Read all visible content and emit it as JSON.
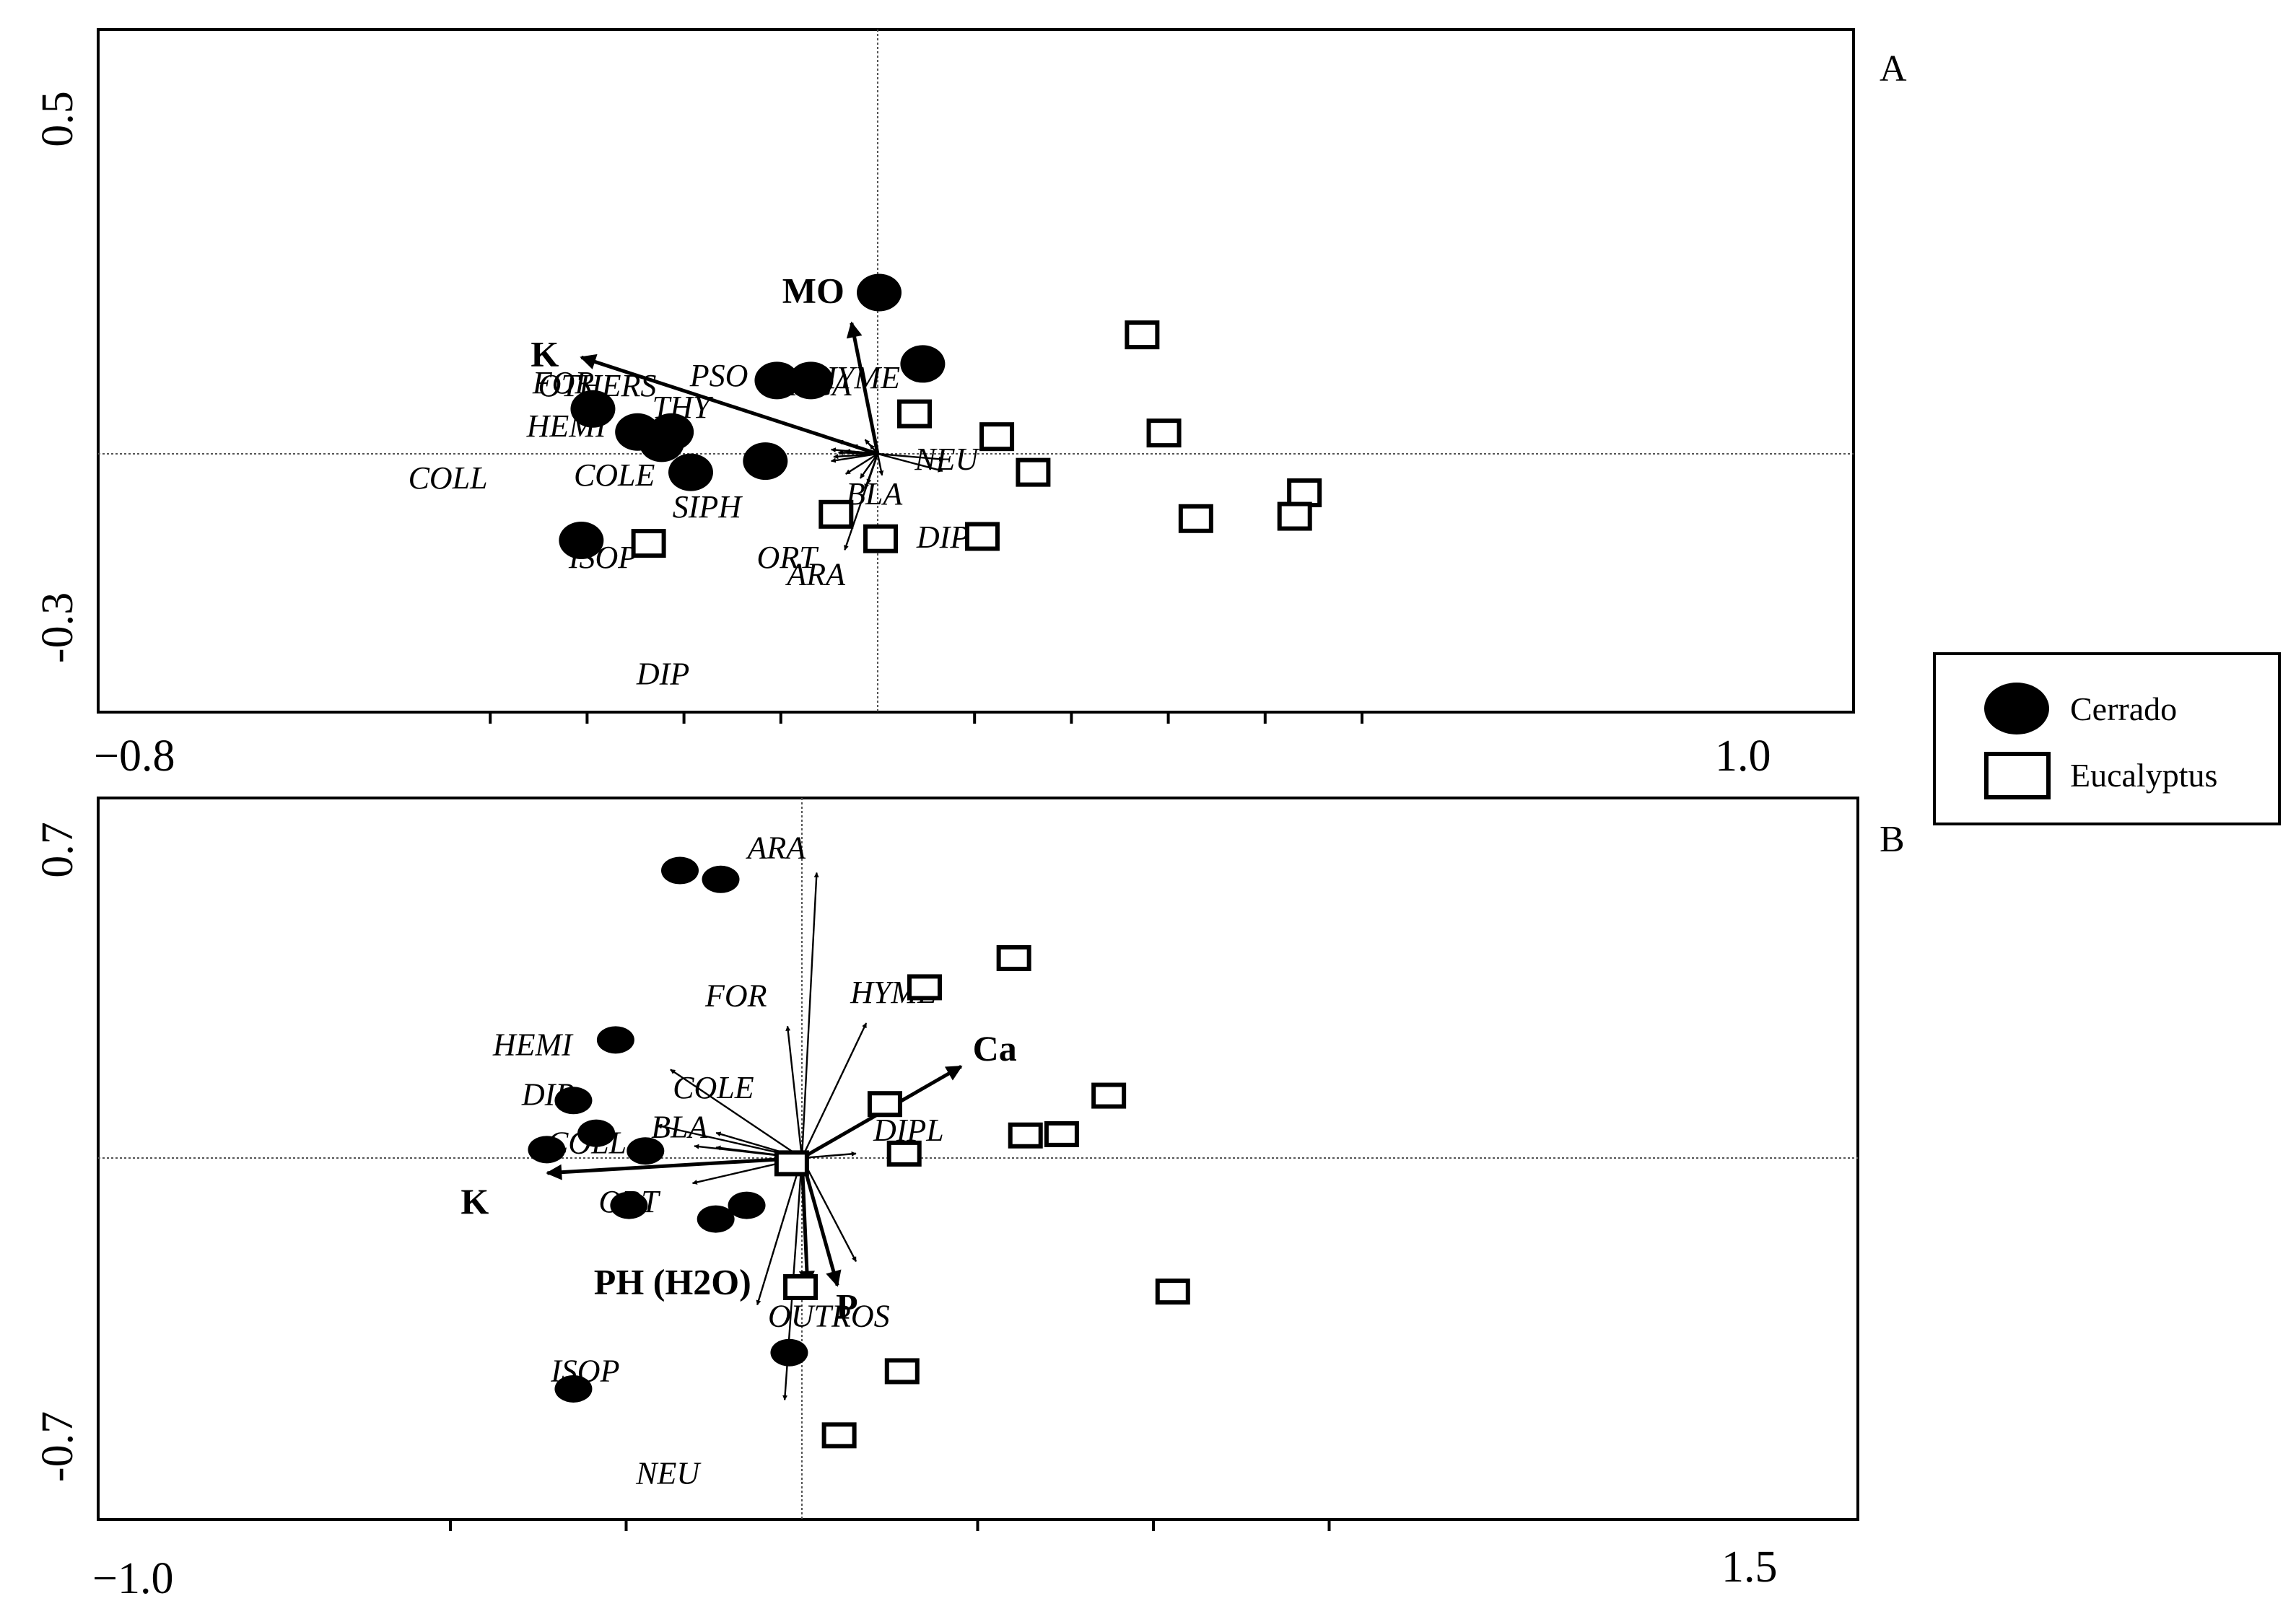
{
  "legend": {
    "items": [
      {
        "label": "Cerrado",
        "marker": "filled-circle",
        "color": "#000000"
      },
      {
        "label": "Eucalyptus",
        "marker": "open-square",
        "color": "#000000"
      }
    ]
  },
  "chart_data": [
    {
      "type": "scatter",
      "panel_label": "A",
      "title": "",
      "xlabel": "",
      "ylabel": "",
      "xlim": [
        -0.8,
        1.0
      ],
      "ylim": [
        -0.3,
        0.5
      ],
      "x_tick_labels": [
        {
          "value": -0.8,
          "label": "−0.8"
        },
        {
          "value": 1.0,
          "label": "1.0"
        }
      ],
      "y_tick_labels": [
        {
          "value": 0.5,
          "label": "0.5"
        },
        {
          "value": -0.3,
          "label": "-0.3"
        }
      ],
      "x_minor_ticks": [
        -0.6,
        -0.4,
        -0.2,
        0.2,
        0.4,
        0.6,
        0.8
      ],
      "grid": false,
      "zero_lines": true,
      "series": [
        {
          "name": "Cerrado",
          "marker": "filled-circle",
          "points": [
            [
              0.003,
              0.488
            ],
            [
              0.093,
              0.272
            ],
            [
              -0.208,
              0.222
            ],
            [
              -0.138,
              0.222
            ],
            [
              -0.588,
              0.136
            ],
            [
              -0.496,
              0.066
            ],
            [
              -0.426,
              0.066
            ],
            [
              -0.446,
              0.032
            ],
            [
              -0.232,
              -0.022
            ],
            [
              -0.386,
              -0.056
            ],
            [
              -0.612,
              -0.262
            ]
          ]
        },
        {
          "name": "Eucalyptus",
          "marker": "open-square",
          "points": [
            [
              0.546,
              0.36
            ],
            [
              0.076,
              0.121
            ],
            [
              0.246,
              0.052
            ],
            [
              0.591,
              0.063
            ],
            [
              0.321,
              -0.056
            ],
            [
              0.881,
              -0.118
            ],
            [
              0.657,
              -0.196
            ],
            [
              0.861,
              -0.189
            ],
            [
              -0.086,
              -0.183
            ],
            [
              0.216,
              -0.25
            ],
            [
              0.006,
              -0.257
            ],
            [
              -0.473,
              -0.271
            ]
          ]
        }
      ],
      "environmental_vectors": [
        {
          "label": "MO",
          "x": -0.054,
          "y": 0.396
        },
        {
          "label": "K",
          "x": -0.612,
          "y": 0.292
        }
      ],
      "species_vectors": [
        {
          "label": "OTHERS",
          "x": -0.081,
          "y": 0.039
        },
        {
          "label": "ACA",
          "x": -0.026,
          "y": 0.043
        },
        {
          "label": "PSO",
          "x": -0.051,
          "y": 0.026
        },
        {
          "label": "HYME",
          "x": -0.016,
          "y": 0.028
        },
        {
          "label": "FOR",
          "x": -0.066,
          "y": 0.009
        },
        {
          "label": "THY",
          "x": -0.096,
          "y": 0.013
        },
        {
          "label": "HEMI",
          "x": -0.081,
          "y": 0.004
        },
        {
          "label": "NEU",
          "x": 0.136,
          "y": -0.017
        },
        {
          "label": "COLE",
          "x": -0.091,
          "y": -0.009
        },
        {
          "label": "COLL",
          "x": -0.096,
          "y": -0.022
        },
        {
          "label": "DIPL",
          "x": 0.134,
          "y": -0.052
        },
        {
          "label": "SIPH",
          "x": -0.066,
          "y": -0.061
        },
        {
          "label": "BLA",
          "x": 0.009,
          "y": -0.065
        },
        {
          "label": "ISOP",
          "x": -0.036,
          "y": -0.074
        },
        {
          "label": "ORT",
          "x": -0.026,
          "y": -0.105
        },
        {
          "label": "DIP",
          "x": -0.021,
          "y": -0.091
        },
        {
          "label": "ARA",
          "x": -0.068,
          "y": -0.291
        }
      ]
    },
    {
      "type": "scatter",
      "panel_label": "B",
      "title": "",
      "xlabel": "",
      "ylabel": "",
      "xlim": [
        -1.0,
        1.5
      ],
      "ylim": [
        -0.7,
        0.7
      ],
      "x_tick_labels": [
        {
          "value": -1.0,
          "label": "−1.0"
        },
        {
          "value": 1.5,
          "label": "1.5"
        }
      ],
      "y_tick_labels": [
        {
          "value": 0.7,
          "label": "0.7"
        },
        {
          "value": -0.7,
          "label": "-0.7"
        }
      ],
      "x_minor_ticks": [
        -0.5,
        0.5,
        1.0
      ],
      "grid": false,
      "zero_lines": true,
      "series": [
        {
          "name": "Cerrado",
          "marker": "filled-circle",
          "points": [
            [
              -0.347,
              0.65
            ],
            [
              -0.231,
              0.63
            ],
            [
              -0.53,
              0.267
            ],
            [
              -0.65,
              0.13
            ],
            [
              -0.585,
              0.056
            ],
            [
              -0.726,
              0.019
            ],
            [
              -0.445,
              0.016
            ],
            [
              -0.492,
              -0.107
            ],
            [
              -0.157,
              -0.107
            ],
            [
              -0.245,
              -0.138
            ],
            [
              -0.036,
              -0.44
            ],
            [
              -0.65,
              -0.522
            ]
          ]
        },
        {
          "name": "Eucalyptus",
          "marker": "open-square",
          "points": [
            [
              0.603,
              0.452
            ],
            [
              0.349,
              0.386
            ],
            [
              0.873,
              0.141
            ],
            [
              0.236,
              0.122
            ],
            [
              0.636,
              0.051
            ],
            [
              0.739,
              0.054
            ],
            [
              0.291,
              0.01
            ],
            [
              -0.029,
              -0.012
            ],
            [
              1.055,
              -0.302
            ],
            [
              -0.004,
              -0.292
            ],
            [
              0.285,
              -0.482
            ],
            [
              0.106,
              -0.627
            ]
          ]
        }
      ],
      "environmental_vectors": [
        {
          "label": "Ca",
          "x": 0.453,
          "y": 0.207
        },
        {
          "label": "K",
          "x": -0.724,
          "y": -0.034
        },
        {
          "label": "PH (H2O)",
          "x": 0.016,
          "y": -0.288
        },
        {
          "label": "P",
          "x": 0.101,
          "y": -0.288
        }
      ],
      "species_vectors": [
        {
          "label": "ARA",
          "x": 0.042,
          "y": 0.645
        },
        {
          "label": "FOR",
          "x": -0.041,
          "y": 0.298
        },
        {
          "label": "HYME",
          "x": 0.183,
          "y": 0.305
        },
        {
          "label": "HEMI",
          "x": -0.374,
          "y": 0.2
        },
        {
          "label": "DIP",
          "x": -0.411,
          "y": 0.074
        },
        {
          "label": "COLE",
          "x": -0.244,
          "y": 0.057
        },
        {
          "label": "BLA",
          "x": -0.244,
          "y": 0.024
        },
        {
          "label": "COLL",
          "x": -0.306,
          "y": 0.027
        },
        {
          "label": "DIPL",
          "x": 0.154,
          "y": 0.01
        },
        {
          "label": "ORT",
          "x": -0.311,
          "y": -0.057
        },
        {
          "label": "OUTROS",
          "x": 0.154,
          "y": -0.234
        },
        {
          "label": "ISOP",
          "x": -0.127,
          "y": -0.332
        },
        {
          "label": "NEU",
          "x": -0.049,
          "y": -0.547
        }
      ]
    }
  ]
}
